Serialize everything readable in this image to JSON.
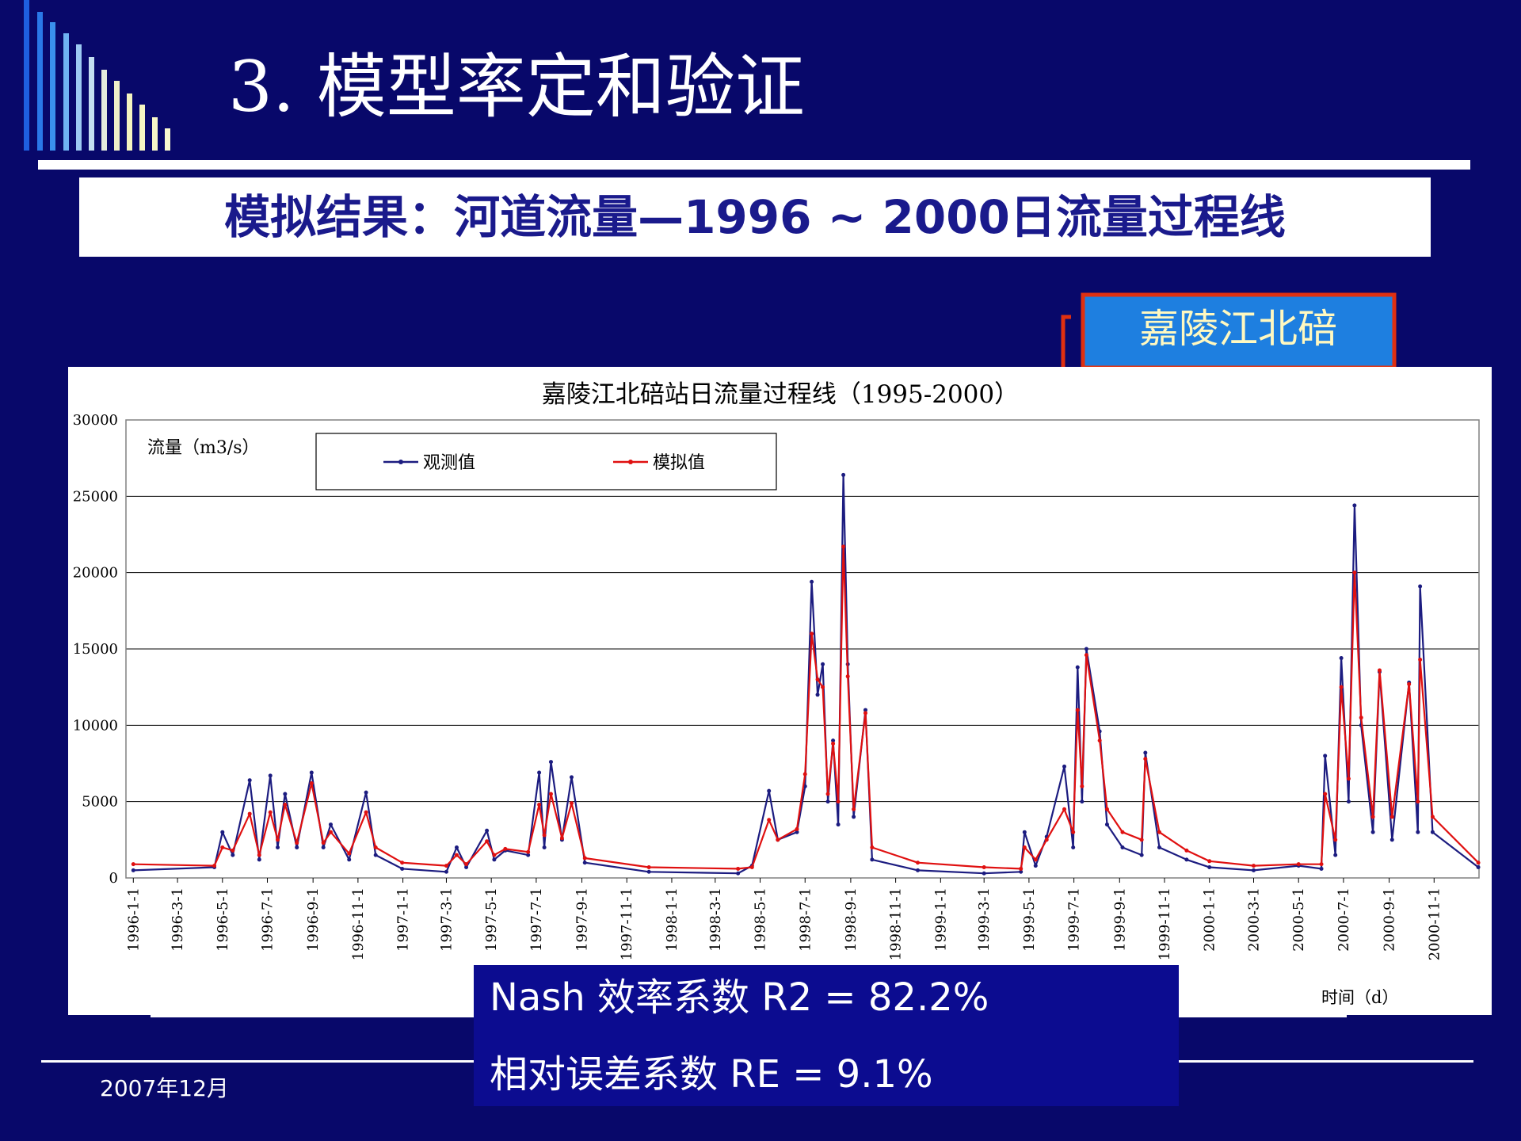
{
  "slide": {
    "title": "3.  模型率定和验证",
    "subtitle": "模拟结果：河道流量—1996 ~ 2000日流量过程线",
    "station": "嘉陵江北碚",
    "metrics": [
      "Nash 效率系数  R2 = 82.2%",
      "相对误差系数 RE = 9.1%"
    ],
    "footer": "2007年12月"
  },
  "chart_data": {
    "type": "line",
    "title": "嘉陵江北碚站日流量过程线（1995-2000）",
    "y_label": "流量（m3/s）",
    "x_label": "时间（d）",
    "x": [
      "1996-1-1",
      "1996-4-20",
      "1996-5-1",
      "1996-5-15",
      "1996-6-7",
      "1996-6-20",
      "1996-7-5",
      "1996-7-15",
      "1996-7-25",
      "1996-8-10",
      "1996-8-30",
      "1996-9-15",
      "1996-9-25",
      "1996-10-20",
      "1996-11-12",
      "1996-11-25",
      "1996-12-31",
      "1997-3-1",
      "1997-3-15",
      "1997-3-28",
      "1997-4-25",
      "1997-5-5",
      "1997-5-20",
      "1997-6-20",
      "1997-7-5",
      "1997-7-12",
      "1997-7-21",
      "1997-8-5",
      "1997-8-18",
      "1997-9-5",
      "1997-12-1",
      "1998-4-1",
      "1998-4-20",
      "1998-5-13",
      "1998-5-25",
      "1998-6-20",
      "1998-7-1",
      "1998-7-10",
      "1998-7-18",
      "1998-7-25",
      "1998-8-1",
      "1998-8-8",
      "1998-8-15",
      "1998-8-22",
      "1998-8-28",
      "1998-9-5",
      "1998-9-21",
      "1998-9-30",
      "1998-12-1",
      "1999-3-1",
      "1999-4-20",
      "1999-4-25",
      "1999-5-10",
      "1999-5-25",
      "1999-6-18",
      "1999-6-30",
      "1999-7-6",
      "1999-7-12",
      "1999-7-18",
      "1999-8-5",
      "1999-8-15",
      "1999-9-5",
      "1999-10-1",
      "1999-10-6",
      "1999-10-25",
      "1999-12-1",
      "2000-1-1",
      "2000-3-1",
      "2000-5-1",
      "2000-6-1",
      "2000-6-6",
      "2000-6-20",
      "2000-6-28",
      "2000-7-8",
      "2000-7-16",
      "2000-7-25",
      "2000-8-10",
      "2000-8-19",
      "2000-9-5",
      "2000-9-28",
      "2000-10-10",
      "2000-10-13",
      "2000-10-30",
      "2000-12-31"
    ],
    "series": [
      {
        "name": "观测值",
        "color": "#1c1c80",
        "values": [
          500,
          700,
          3000,
          1500,
          6400,
          1200,
          6700,
          2000,
          5500,
          2000,
          6900,
          2000,
          3500,
          1200,
          5600,
          1500,
          600,
          400,
          2000,
          700,
          3100,
          1200,
          1800,
          1500,
          6900,
          2000,
          7600,
          2500,
          6600,
          1000,
          400,
          300,
          800,
          5700,
          2500,
          3000,
          6000,
          19400,
          12000,
          14000,
          5000,
          9000,
          3500,
          26400,
          14000,
          4000,
          11000,
          1200,
          500,
          300,
          400,
          3000,
          800,
          2700,
          7300,
          2000,
          13800,
          5000,
          15000,
          9600,
          3500,
          2000,
          1500,
          8200,
          2000,
          1200,
          700,
          500,
          800,
          600,
          8000,
          1500,
          14400,
          5000,
          24400,
          10000,
          3000,
          13500,
          2500,
          12800,
          3000,
          19100,
          3000,
          700
        ]
      },
      {
        "name": "模拟值",
        "color": "#e01010",
        "values": [
          900,
          800,
          2000,
          1800,
          4200,
          1500,
          4300,
          2500,
          4800,
          2300,
          6200,
          2300,
          3000,
          1600,
          4300,
          2000,
          1000,
          800,
          1500,
          900,
          2400,
          1500,
          1900,
          1700,
          4800,
          2800,
          5500,
          2600,
          4900,
          1300,
          700,
          600,
          700,
          3800,
          2500,
          3200,
          6800,
          16000,
          13000,
          12500,
          5500,
          8800,
          5000,
          21700,
          13200,
          4500,
          10800,
          2000,
          1000,
          700,
          600,
          2000,
          1200,
          2500,
          4500,
          3000,
          11000,
          6000,
          14600,
          9000,
          4500,
          3000,
          2500,
          7800,
          3000,
          1800,
          1100,
          800,
          900,
          900,
          5500,
          2500,
          12500,
          6500,
          20000,
          10500,
          4000,
          13600,
          4000,
          12700,
          5000,
          14300,
          4000,
          1000
        ]
      }
    ],
    "xlim": [
      "1995-12-22",
      "2001-1-1"
    ],
    "xticks": [
      "1996-1-1",
      "1996-3-1",
      "1996-5-1",
      "1996-7-1",
      "1996-9-1",
      "1996-11-1",
      "1997-1-1",
      "1997-3-1",
      "1997-5-1",
      "1997-7-1",
      "1997-9-1",
      "1997-11-1",
      "1998-1-1",
      "1998-3-1",
      "1998-5-1",
      "1998-7-1",
      "1998-9-1",
      "1998-11-1",
      "1999-1-1",
      "1999-3-1",
      "1999-5-1",
      "1999-7-1",
      "1999-9-1",
      "1999-11-1",
      "2000-1-1",
      "2000-3-1",
      "2000-5-1",
      "2000-7-1",
      "2000-9-1",
      "2000-11-1"
    ],
    "ylim": [
      0,
      30000
    ],
    "yticks": [
      0,
      5000,
      10000,
      15000,
      20000,
      25000,
      30000
    ],
    "grid": true,
    "legend": "top"
  }
}
